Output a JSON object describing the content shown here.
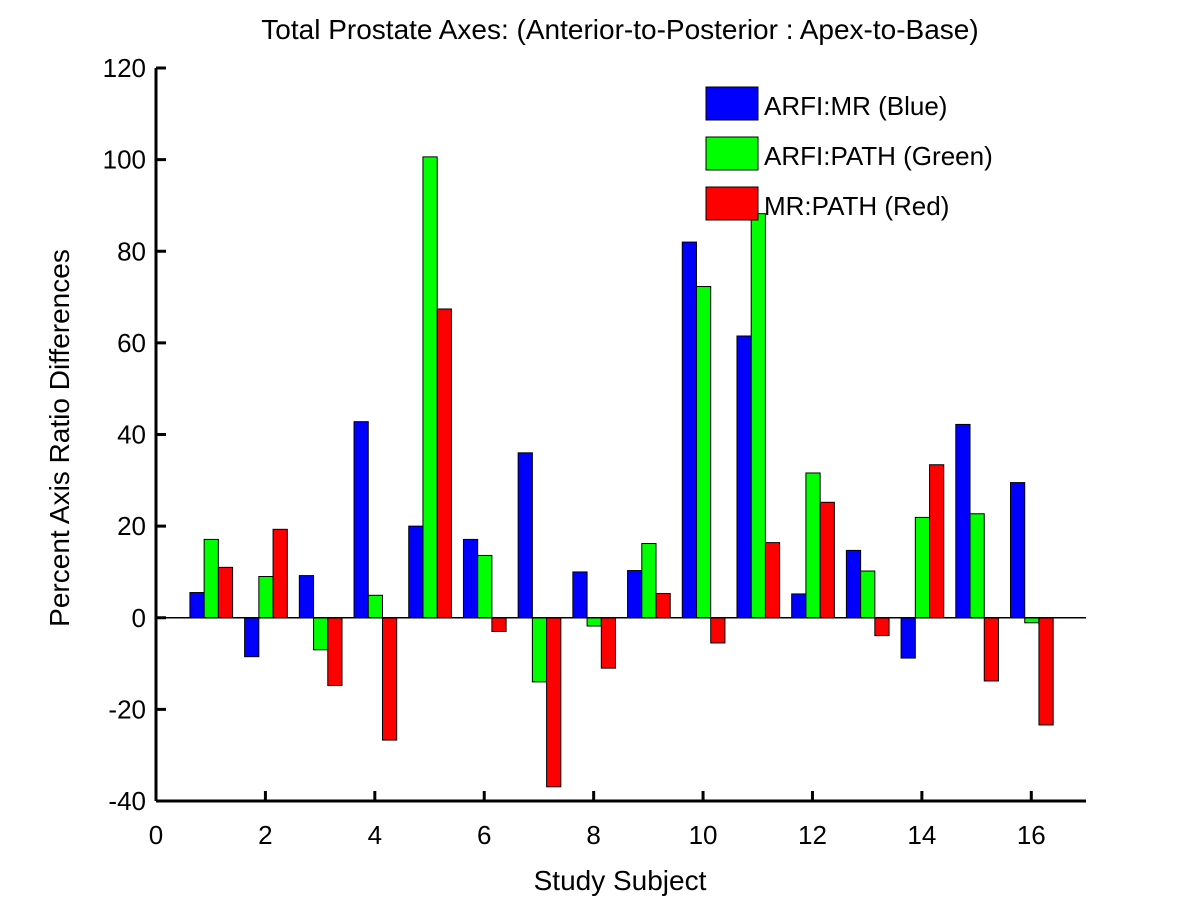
{
  "chart_data": {
    "type": "bar",
    "title": "Total Prostate Axes: (Anterior-to-Posterior : Apex-to-Base)",
    "xlabel": "Study Subject",
    "ylabel": "Percent Axis Ratio Differences",
    "xlim": [
      0,
      17
    ],
    "ylim": [
      -40,
      120
    ],
    "xticks": [
      0,
      2,
      4,
      6,
      8,
      10,
      12,
      14,
      16
    ],
    "yticks": [
      -40,
      -20,
      0,
      20,
      40,
      60,
      80,
      100,
      120
    ],
    "grid": false,
    "legend_position": "top-right",
    "categories": [
      1,
      2,
      3,
      4,
      5,
      6,
      7,
      8,
      9,
      10,
      11,
      12,
      13,
      14,
      15,
      16
    ],
    "series": [
      {
        "name": "ARFI:MR (Blue)",
        "color": "#0000ff",
        "values": [
          5.5,
          -8.5,
          9.2,
          42.8,
          20.0,
          17.1,
          36.0,
          10.0,
          10.3,
          82.0,
          61.5,
          5.2,
          14.7,
          -8.8,
          42.2,
          29.5
        ]
      },
      {
        "name": "ARFI:PATH (Green)",
        "color": "#00ff00",
        "values": [
          17.1,
          9.0,
          -7.0,
          4.9,
          100.6,
          13.6,
          -14.0,
          -1.8,
          16.2,
          72.3,
          88.2,
          31.6,
          10.2,
          21.9,
          22.7,
          -1.1
        ]
      },
      {
        "name": "MR:PATH (Red)",
        "color": "#ff0000",
        "values": [
          11.0,
          19.3,
          -14.8,
          -26.7,
          67.4,
          -3.0,
          -36.9,
          -11.0,
          5.3,
          -5.5,
          16.4,
          25.2,
          -3.9,
          33.4,
          -13.8,
          -23.4
        ]
      }
    ]
  }
}
